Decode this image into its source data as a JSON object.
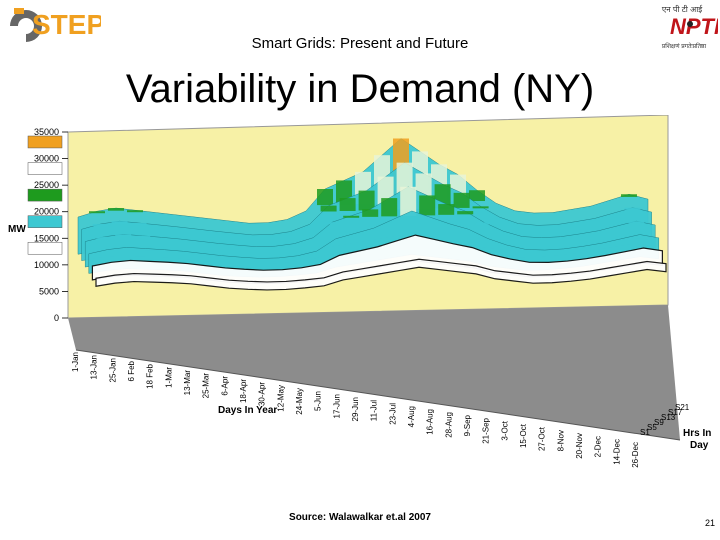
{
  "header": {
    "left_logo": {
      "text": "STEP",
      "icon": "cstep-logo"
    },
    "right_logo": {
      "hindi_top": "एन पी टी आई",
      "main": "NPTI",
      "hindi_bottom": "प्रशिक्षणं प्रगतेःप्रतिष्ठा",
      "icon": "npti-logo"
    },
    "subtitle": "Smart Grids: Present and Future",
    "title": "Variability in Demand (NY)"
  },
  "chart_data": {
    "type": "area",
    "projection": "3d-surface",
    "ylabel": "MW",
    "xlabel": "Days In Year",
    "zlabel": "Hrs In Day",
    "ylim": [
      0,
      35000
    ],
    "y_ticks": [
      0,
      5000,
      10000,
      15000,
      20000,
      25000,
      30000,
      35000
    ],
    "y_tick_labels": [
      "0",
      "5000",
      "10000",
      "15000",
      "20000",
      "25000",
      "30000",
      "35000"
    ],
    "x_categories": [
      "1-Jan",
      "13-Jan",
      "25-Jan",
      "6 Feb",
      "18 Feb",
      "1-Mar",
      "13-Mar",
      "25-Mar",
      "6-Apr",
      "18-Apr",
      "30-Apr",
      "12-May",
      "24-May",
      "5-Jun",
      "17-Jun",
      "29-Jun",
      "11-Jul",
      "23-Jul",
      "4-Aug",
      "16-Aug",
      "28-Aug",
      "9-Sep",
      "21-Sep",
      "3-Oct",
      "15-Oct",
      "27-Oct",
      "8-Nov",
      "20-Nov",
      "2-Dec",
      "14-Dec",
      "26-Dec"
    ],
    "z_categories": [
      "S1",
      "S5",
      "S9",
      "S13",
      "S17",
      "S21"
    ],
    "legend_bands": [
      {
        "range": [
          10000,
          15000
        ],
        "color": "#ffffff"
      },
      {
        "range": [
          15000,
          20000
        ],
        "color": "#3cc8d2"
      },
      {
        "range": [
          20000,
          25000
        ],
        "color": "#1e9b1e"
      },
      {
        "range": [
          25000,
          30000
        ],
        "color": "#ffffff"
      },
      {
        "range": [
          30000,
          35000
        ],
        "color": "#f0a020"
      }
    ],
    "day_series": [
      {
        "day": "1-Jan",
        "low": 13500,
        "high": 19000
      },
      {
        "day": "13-Jan",
        "low": 14000,
        "high": 20000
      },
      {
        "day": "25-Jan",
        "low": 14200,
        "high": 20500
      },
      {
        "day": "6 Feb",
        "low": 14000,
        "high": 20000
      },
      {
        "day": "18 Feb",
        "low": 13800,
        "high": 19500
      },
      {
        "day": "1-Mar",
        "low": 13500,
        "high": 19000
      },
      {
        "day": "13-Mar",
        "low": 13000,
        "high": 18500
      },
      {
        "day": "25-Mar",
        "low": 12500,
        "high": 18000
      },
      {
        "day": "6-Apr",
        "low": 12200,
        "high": 17500
      },
      {
        "day": "18-Apr",
        "low": 12000,
        "high": 17000
      },
      {
        "day": "30-Apr",
        "low": 12000,
        "high": 17000
      },
      {
        "day": "12-May",
        "low": 12200,
        "high": 17500
      },
      {
        "day": "24-May",
        "low": 12500,
        "high": 19000
      },
      {
        "day": "5-Jun",
        "low": 13500,
        "high": 23000
      },
      {
        "day": "17-Jun",
        "low": 14000,
        "high": 24500
      },
      {
        "day": "29-Jun",
        "low": 14500,
        "high": 26000
      },
      {
        "day": "11-Jul",
        "low": 15000,
        "high": 29000
      },
      {
        "day": "23-Jul",
        "low": 15500,
        "high": 32000
      },
      {
        "day": "4-Aug",
        "low": 15000,
        "high": 29500
      },
      {
        "day": "16-Aug",
        "low": 14500,
        "high": 27000
      },
      {
        "day": "28-Aug",
        "low": 14000,
        "high": 25000
      },
      {
        "day": "9-Sep",
        "low": 13000,
        "high": 22000
      },
      {
        "day": "21-Sep",
        "low": 12500,
        "high": 19500
      },
      {
        "day": "3-Oct",
        "low": 12000,
        "high": 18000
      },
      {
        "day": "15-Oct",
        "low": 12000,
        "high": 17500
      },
      {
        "day": "27-Oct",
        "low": 12200,
        "high": 17500
      },
      {
        "day": "8-Nov",
        "low": 12500,
        "high": 18000
      },
      {
        "day": "20-Nov",
        "low": 13000,
        "high": 18500
      },
      {
        "day": "2-Dec",
        "low": 13500,
        "high": 19500
      },
      {
        "day": "14-Dec",
        "low": 14000,
        "high": 20500
      },
      {
        "day": "26-Dec",
        "low": 13500,
        "high": 19500
      }
    ]
  },
  "footer": {
    "source": "Source: Walawalkar et.al 2007",
    "slide_number": "21"
  },
  "colors": {
    "wall": "#f7f1a6",
    "floor": "#8c8c8c",
    "cyan": "#3cc8d2",
    "green": "#1e9b1e",
    "orange": "#f0a020",
    "dark": "#111111"
  }
}
